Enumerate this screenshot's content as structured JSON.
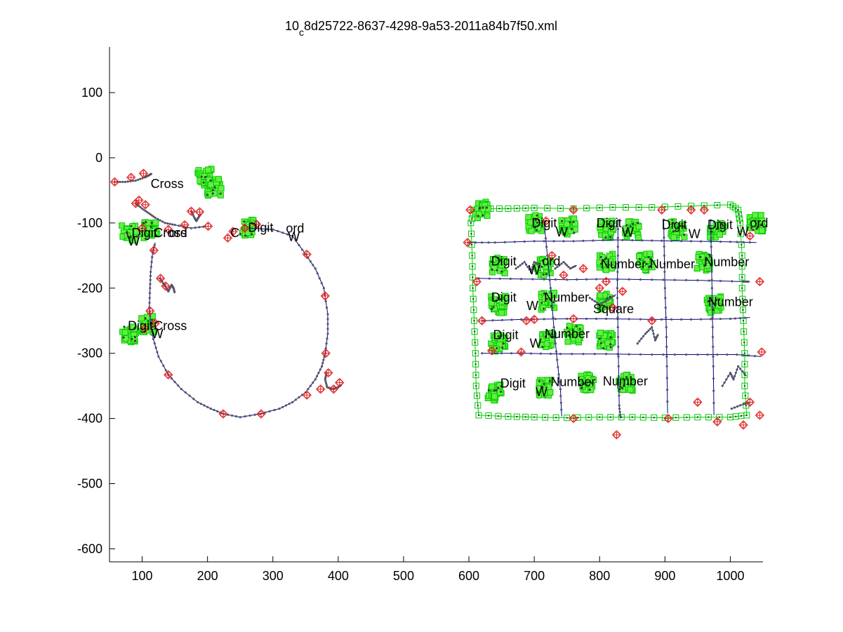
{
  "chart_data": {
    "type": "scatter",
    "title_main": "10",
    "title_sub": "c",
    "title_rest": "8d25722-8637-4298-9a53-2011a84b7f50.xml",
    "xlim": [
      50,
      1050
    ],
    "ylim": [
      -620,
      170
    ],
    "x_ticks": [
      "100",
      "200",
      "300",
      "400",
      "500",
      "600",
      "700",
      "800",
      "900",
      "1000"
    ],
    "y_ticks": [
      "100",
      "0",
      "-100",
      "-200",
      "-300",
      "-400",
      "-500",
      "-600"
    ],
    "grid": false,
    "colors": {
      "stroke_line": "#00008b",
      "stroke_point": "#555566",
      "box": "#00cc00",
      "box_fill": "#66ee44",
      "diamond": "#dd2222",
      "cross": "#dd2222"
    },
    "labels": [
      {
        "main": "Cross",
        "x": 113,
        "y": -40
      },
      {
        "main": "Digit",
        "x": 84,
        "y": -115
      },
      {
        "main": "Cross",
        "x": 118,
        "y": -115
      },
      {
        "main": "ord",
        "x": 141,
        "y": -115
      },
      {
        "main": "Digit",
        "x": 262,
        "y": -107
      },
      {
        "main": "C",
        "x": 235,
        "y": -115
      },
      {
        "main": "ord",
        "x": 320,
        "y": -108
      },
      {
        "main": "Digit",
        "x": 78,
        "y": -258
      },
      {
        "main": "Cross",
        "x": 118,
        "y": -258
      },
      {
        "main": "Digit",
        "x": 696,
        "y": -100
      },
      {
        "main": "Digit",
        "x": 795,
        "y": -100
      },
      {
        "main": "Digit",
        "x": 895,
        "y": -103
      },
      {
        "main": "Digit",
        "x": 965,
        "y": -103
      },
      {
        "main": "ord",
        "x": 1030,
        "y": -100
      },
      {
        "main": "Digit",
        "x": 634,
        "y": -159
      },
      {
        "main": "ord",
        "x": 712,
        "y": -159
      },
      {
        "main": "Number",
        "x": 802,
        "y": -163
      },
      {
        "main": "Number",
        "x": 877,
        "y": -163
      },
      {
        "main": "Number",
        "x": 960,
        "y": -160
      },
      {
        "main": "Digit",
        "x": 634,
        "y": -214
      },
      {
        "main": "Number",
        "x": 715,
        "y": -214
      },
      {
        "main": "Square",
        "x": 790,
        "y": -232
      },
      {
        "main": "Number",
        "x": 966,
        "y": -221
      },
      {
        "main": "Digit",
        "x": 637,
        "y": -272
      },
      {
        "main": "Number",
        "x": 716,
        "y": -270
      },
      {
        "main": "Digit",
        "x": 648,
        "y": -346
      },
      {
        "main": "Number",
        "x": 725,
        "y": -344
      },
      {
        "main": "Number",
        "x": 805,
        "y": -343
      }
    ],
    "subscript_labels": [
      {
        "main": "W",
        "x": 78,
        "y": -128
      },
      {
        "main": "W",
        "x": 323,
        "y": -121
      },
      {
        "main": "W",
        "x": 114,
        "y": -270
      },
      {
        "main": "W",
        "x": 733,
        "y": -114
      },
      {
        "main": "W",
        "x": 834,
        "y": -114
      },
      {
        "main": "W",
        "x": 936,
        "y": -117
      },
      {
        "main": "W",
        "x": 1010,
        "y": -113
      },
      {
        "main": "W",
        "x": 691,
        "y": -172
      },
      {
        "main": "W",
        "x": 688,
        "y": -227
      },
      {
        "main": "W",
        "x": 693,
        "y": -285
      },
      {
        "main": "W",
        "x": 702,
        "y": -359
      }
    ],
    "strokes": [
      {
        "points": [
          [
            58,
            -37
          ],
          [
            74,
            -37
          ],
          [
            90,
            -35
          ],
          [
            104,
            -30
          ],
          [
            110,
            -27
          ],
          [
            115,
            -24
          ]
        ]
      },
      {
        "points": [
          [
            90,
            -70
          ],
          [
            100,
            -78
          ],
          [
            110,
            -85
          ],
          [
            120,
            -92
          ],
          [
            135,
            -100
          ],
          [
            150,
            -103
          ],
          [
            175,
            -108
          ],
          [
            200,
            -105
          ]
        ]
      },
      {
        "points": [
          [
            265,
            -108
          ],
          [
            300,
            -110
          ],
          [
            330,
            -120
          ],
          [
            350,
            -148
          ],
          [
            365,
            -170
          ],
          [
            378,
            -200
          ],
          [
            384,
            -240
          ],
          [
            384,
            -270
          ],
          [
            380,
            -300
          ],
          [
            375,
            -320
          ],
          [
            365,
            -340
          ],
          [
            350,
            -360
          ],
          [
            330,
            -375
          ],
          [
            310,
            -385
          ],
          [
            280,
            -393
          ],
          [
            250,
            -398
          ],
          [
            225,
            -393
          ],
          [
            205,
            -385
          ],
          [
            185,
            -375
          ],
          [
            160,
            -355
          ],
          [
            140,
            -333
          ],
          [
            125,
            -305
          ],
          [
            117,
            -278
          ],
          [
            113,
            -255
          ],
          [
            111,
            -230
          ],
          [
            112,
            -200
          ],
          [
            113,
            -175
          ],
          [
            116,
            -145
          ],
          [
            120,
            -130
          ]
        ]
      },
      {
        "points": [
          [
            382,
            -330
          ],
          [
            380,
            -340
          ],
          [
            383,
            -352
          ],
          [
            392,
            -355
          ],
          [
            400,
            -352
          ],
          [
            405,
            -348
          ]
        ]
      },
      {
        "points": [
          [
            127,
            -185
          ],
          [
            134,
            -195
          ],
          [
            140,
            -205
          ],
          [
            145,
            -195
          ],
          [
            148,
            -200
          ],
          [
            150,
            -208
          ]
        ]
      },
      {
        "points": [
          [
            175,
            -82
          ],
          [
            180,
            -92
          ],
          [
            183,
            -97
          ],
          [
            187,
            -90
          ],
          [
            190,
            -86
          ]
        ]
      },
      {
        "points": [
          [
            600,
            -130
          ],
          [
            640,
            -130
          ],
          [
            700,
            -128
          ],
          [
            760,
            -128
          ],
          [
            820,
            -126
          ],
          [
            880,
            -127
          ],
          [
            940,
            -128
          ],
          [
            1000,
            -129
          ],
          [
            1040,
            -130
          ]
        ]
      },
      {
        "points": [
          [
            615,
            -185
          ],
          [
            680,
            -186
          ],
          [
            750,
            -187
          ],
          [
            810,
            -186
          ],
          [
            880,
            -187
          ],
          [
            950,
            -188
          ],
          [
            1020,
            -190
          ],
          [
            1030,
            -190
          ]
        ]
      },
      {
        "points": [
          [
            622,
            -250
          ],
          [
            680,
            -248
          ],
          [
            750,
            -247
          ],
          [
            810,
            -247
          ],
          [
            880,
            -248
          ],
          [
            940,
            -248
          ],
          [
            1000,
            -247
          ],
          [
            1030,
            -245
          ]
        ]
      },
      {
        "points": [
          [
            620,
            -300
          ],
          [
            680,
            -300
          ],
          [
            740,
            -301
          ],
          [
            810,
            -301
          ],
          [
            880,
            -302
          ],
          [
            950,
            -302
          ],
          [
            1010,
            -302
          ],
          [
            1047,
            -305
          ]
        ]
      },
      {
        "points": [
          [
            715,
            -97
          ],
          [
            720,
            -150
          ],
          [
            725,
            -200
          ],
          [
            730,
            -260
          ],
          [
            735,
            -310
          ],
          [
            740,
            -355
          ],
          [
            742,
            -397
          ]
        ]
      },
      {
        "points": [
          [
            828,
            -96
          ],
          [
            828,
            -150
          ],
          [
            827,
            -200
          ],
          [
            828,
            -260
          ],
          [
            829,
            -320
          ],
          [
            830,
            -380
          ],
          [
            832,
            -400
          ]
        ]
      },
      {
        "points": [
          [
            898,
            -95
          ],
          [
            899,
            -150
          ],
          [
            900,
            -200
          ],
          [
            902,
            -260
          ],
          [
            903,
            -320
          ],
          [
            904,
            -392
          ]
        ]
      },
      {
        "points": [
          [
            970,
            -96
          ],
          [
            971,
            -150
          ],
          [
            972,
            -200
          ],
          [
            973,
            -260
          ],
          [
            974,
            -320
          ],
          [
            975,
            -395
          ]
        ]
      },
      {
        "points": [
          [
            672,
            -170
          ],
          [
            685,
            -160
          ],
          [
            695,
            -175
          ],
          [
            700,
            -160
          ],
          [
            710,
            -165
          ]
        ]
      },
      {
        "points": [
          [
            732,
            -170
          ],
          [
            745,
            -160
          ],
          [
            755,
            -170
          ],
          [
            765,
            -165
          ]
        ]
      },
      {
        "points": [
          [
            785,
            -215
          ],
          [
            800,
            -225
          ],
          [
            813,
            -218
          ],
          [
            825,
            -210
          ]
        ]
      },
      {
        "points": [
          [
            858,
            -285
          ],
          [
            870,
            -270
          ],
          [
            880,
            -260
          ],
          [
            885,
            -280
          ],
          [
            890,
            -270
          ]
        ]
      },
      {
        "points": [
          [
            988,
            -350
          ],
          [
            1000,
            -330
          ],
          [
            1005,
            -340
          ],
          [
            1012,
            -320
          ],
          [
            1025,
            -335
          ]
        ]
      },
      {
        "points": [
          [
            1002,
            -385
          ],
          [
            1020,
            -378
          ],
          [
            1030,
            -375
          ]
        ]
      }
    ],
    "strokes_green": [
      {
        "points": [
          [
            608,
            -80
          ],
          [
            620,
            -78
          ],
          [
            660,
            -78
          ],
          [
            700,
            -77
          ],
          [
            760,
            -78
          ],
          [
            820,
            -76
          ],
          [
            880,
            -76
          ],
          [
            940,
            -74
          ],
          [
            1000,
            -72
          ],
          [
            1012,
            -80
          ],
          [
            1015,
            -100
          ],
          [
            1018,
            -150
          ],
          [
            1018,
            -200
          ],
          [
            1020,
            -250
          ],
          [
            1022,
            -300
          ],
          [
            1022,
            -350
          ],
          [
            1025,
            -395
          ],
          [
            1000,
            -398
          ],
          [
            950,
            -398
          ],
          [
            900,
            -399
          ],
          [
            850,
            -398
          ],
          [
            800,
            -398
          ],
          [
            750,
            -399
          ],
          [
            700,
            -398
          ],
          [
            660,
            -397
          ],
          [
            615,
            -395
          ],
          [
            611,
            -350
          ],
          [
            610,
            -300
          ],
          [
            608,
            -250
          ],
          [
            606,
            -200
          ],
          [
            605,
            -150
          ],
          [
            603,
            -100
          ],
          [
            608,
            -80
          ]
        ]
      }
    ],
    "green_clusters": [
      [
        80,
        -115
      ],
      [
        112,
        -110
      ],
      [
        195,
        -30
      ],
      [
        210,
        -45
      ],
      [
        260,
        -108
      ],
      [
        80,
        -270
      ],
      [
        110,
        -255
      ],
      [
        620,
        -80
      ],
      [
        700,
        -100
      ],
      [
        752,
        -105
      ],
      [
        810,
        -110
      ],
      [
        850,
        -110
      ],
      [
        920,
        -110
      ],
      [
        980,
        -110
      ],
      [
        1040,
        -100
      ],
      [
        645,
        -165
      ],
      [
        715,
        -168
      ],
      [
        810,
        -160
      ],
      [
        870,
        -160
      ],
      [
        960,
        -160
      ],
      [
        645,
        -225
      ],
      [
        720,
        -220
      ],
      [
        810,
        -220
      ],
      [
        975,
        -225
      ],
      [
        645,
        -285
      ],
      [
        720,
        -280
      ],
      [
        760,
        -270
      ],
      [
        810,
        -280
      ],
      [
        640,
        -360
      ],
      [
        715,
        -352
      ],
      [
        780,
        -345
      ],
      [
        840,
        -345
      ]
    ],
    "red_markers": [
      [
        58,
        -37
      ],
      [
        102,
        -24
      ],
      [
        83,
        -30
      ],
      [
        95,
        -65
      ],
      [
        105,
        -72
      ],
      [
        100,
        -108
      ],
      [
        118,
        -142
      ],
      [
        136,
        -197
      ],
      [
        128,
        -185
      ],
      [
        112,
        -235
      ],
      [
        104,
        -262
      ],
      [
        120,
        -254
      ],
      [
        201,
        -105
      ],
      [
        188,
        -83
      ],
      [
        175,
        -82
      ],
      [
        165,
        -103
      ],
      [
        140,
        -110
      ],
      [
        90,
        -70
      ],
      [
        231,
        -123
      ],
      [
        239,
        -113
      ],
      [
        257,
        -108
      ],
      [
        275,
        -102
      ],
      [
        352,
        -148
      ],
      [
        380,
        -212
      ],
      [
        381,
        -300
      ],
      [
        373,
        -355
      ],
      [
        393,
        -355
      ],
      [
        402,
        -345
      ],
      [
        385,
        -330
      ],
      [
        352,
        -364
      ],
      [
        282,
        -393
      ],
      [
        224,
        -393
      ],
      [
        140,
        -333
      ],
      [
        602,
        -80
      ],
      [
        598,
        -130
      ],
      [
        612,
        -190
      ],
      [
        620,
        -250
      ],
      [
        635,
        -296
      ],
      [
        680,
        -298
      ],
      [
        718,
        -97
      ],
      [
        727,
        -150
      ],
      [
        745,
        -180
      ],
      [
        760,
        -80
      ],
      [
        775,
        -170
      ],
      [
        800,
        -200
      ],
      [
        810,
        -190
      ],
      [
        820,
        -230
      ],
      [
        835,
        -205
      ],
      [
        880,
        -250
      ],
      [
        895,
        -80
      ],
      [
        905,
        -400
      ],
      [
        940,
        -80
      ],
      [
        950,
        -375
      ],
      [
        960,
        -80
      ],
      [
        980,
        -405
      ],
      [
        1030,
        -120
      ],
      [
        1045,
        -190
      ],
      [
        1048,
        -298
      ],
      [
        1030,
        -375
      ],
      [
        1020,
        -410
      ],
      [
        1045,
        -395
      ],
      [
        826,
        -425
      ],
      [
        760,
        -247
      ],
      [
        700,
        -248
      ],
      [
        760,
        -400
      ],
      [
        688,
        -250
      ]
    ]
  }
}
